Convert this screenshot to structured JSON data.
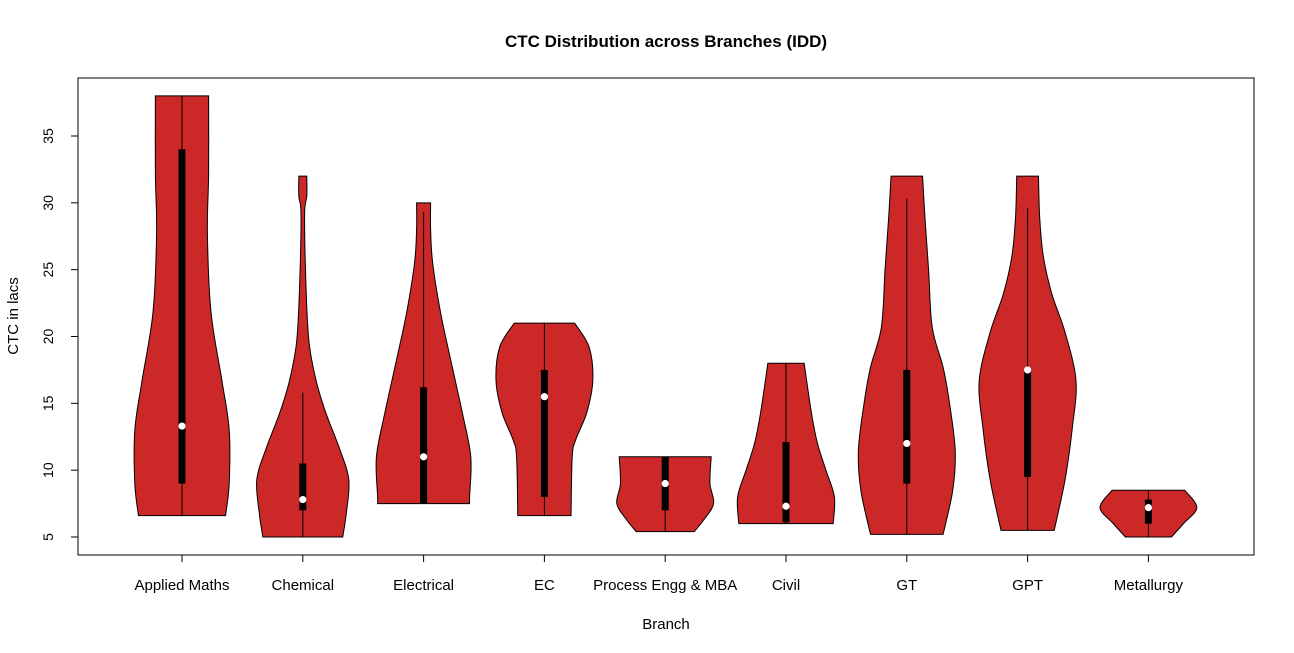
{
  "chart_data": {
    "type": "violin",
    "title": "CTC Distribution across Branches (IDD)",
    "xlabel": "Branch",
    "ylabel": "CTC in lacs",
    "ylim": [
      3.6,
      39.3
    ],
    "yticks": [
      5,
      10,
      15,
      20,
      25,
      30,
      35
    ],
    "fill_color": "#CC2828",
    "grid": false,
    "categories": [
      "Applied Maths",
      "Chemical",
      "Electrical",
      "EC",
      "Process Engg & MBA",
      "Civil",
      "GT",
      "GPT",
      "Metallurgy"
    ],
    "series": [
      {
        "min": 6.6,
        "max": 38,
        "q1": 9,
        "q3": 34,
        "median": 13.3,
        "whisker_low": 6.6,
        "whisker_high": 38,
        "density": [
          [
            6.6,
            0.36
          ],
          [
            9,
            0.39
          ],
          [
            13,
            0.39
          ],
          [
            16.7,
            0.33
          ],
          [
            21.8,
            0.24
          ],
          [
            27.7,
            0.21
          ],
          [
            32.2,
            0.22
          ],
          [
            38,
            0.22
          ]
        ]
      },
      {
        "min": 5,
        "max": 32,
        "q1": 7,
        "q3": 10.5,
        "median": 7.8,
        "whisker_low": 5,
        "whisker_high": 15.8,
        "density": [
          [
            5,
            0.33
          ],
          [
            6.8,
            0.36
          ],
          [
            9.3,
            0.38
          ],
          [
            11.7,
            0.3
          ],
          [
            14.3,
            0.19
          ],
          [
            16.7,
            0.11
          ],
          [
            19.7,
            0.05
          ],
          [
            24.2,
            0.025
          ],
          [
            29.2,
            0.015
          ],
          [
            30.5,
            0.033
          ],
          [
            32,
            0.033
          ]
        ]
      },
      {
        "min": 7.5,
        "max": 30,
        "q1": 7.5,
        "q3": 16.2,
        "median": 11,
        "whisker_low": 7.5,
        "whisker_high": 29.3,
        "density": [
          [
            7.5,
            0.38
          ],
          [
            8,
            0.38
          ],
          [
            11,
            0.39
          ],
          [
            14.3,
            0.32
          ],
          [
            18,
            0.23
          ],
          [
            21.8,
            0.14
          ],
          [
            25.5,
            0.075
          ],
          [
            28,
            0.058
          ],
          [
            30,
            0.058
          ]
        ]
      },
      {
        "min": 6.6,
        "max": 21,
        "q1": 8,
        "q3": 17.5,
        "median": 15.5,
        "whisker_low": 6.6,
        "whisker_high": 21,
        "density": [
          [
            6.6,
            0.22
          ],
          [
            11,
            0.23
          ],
          [
            12.3,
            0.26
          ],
          [
            14.3,
            0.35
          ],
          [
            16.7,
            0.4
          ],
          [
            19.2,
            0.37
          ],
          [
            21,
            0.25
          ]
        ]
      },
      {
        "min": 5.4,
        "max": 11,
        "q1": 7,
        "q3": 11,
        "median": 9,
        "whisker_low": 5.4,
        "whisker_high": 11,
        "density": [
          [
            5.4,
            0.24
          ],
          [
            6.3,
            0.32
          ],
          [
            7.5,
            0.4
          ],
          [
            9,
            0.37
          ],
          [
            11,
            0.38
          ]
        ]
      },
      {
        "min": 6,
        "max": 18,
        "q1": 6.1,
        "q3": 12.1,
        "median": 7.3,
        "whisker_low": 6,
        "whisker_high": 18,
        "density": [
          [
            6,
            0.39
          ],
          [
            8,
            0.4
          ],
          [
            10,
            0.33
          ],
          [
            12,
            0.26
          ],
          [
            14.3,
            0.21
          ],
          [
            18,
            0.15
          ]
        ]
      },
      {
        "min": 5.2,
        "max": 32,
        "q1": 9,
        "q3": 17.5,
        "median": 12,
        "whisker_low": 5.2,
        "whisker_high": 30.3,
        "density": [
          [
            5.2,
            0.3
          ],
          [
            8.5,
            0.38
          ],
          [
            11.5,
            0.4
          ],
          [
            15.2,
            0.35
          ],
          [
            17.7,
            0.3
          ],
          [
            20.7,
            0.21
          ],
          [
            25,
            0.18
          ],
          [
            28.9,
            0.15
          ],
          [
            32,
            0.13
          ]
        ]
      },
      {
        "min": 5.5,
        "max": 32,
        "q1": 9.5,
        "q3": 17.5,
        "median": 17.5,
        "whisker_low": 5.5,
        "whisker_high": 29.6,
        "density": [
          [
            5.5,
            0.22
          ],
          [
            9.3,
            0.31
          ],
          [
            13.2,
            0.37
          ],
          [
            16.7,
            0.4
          ],
          [
            20.3,
            0.31
          ],
          [
            23.2,
            0.2
          ],
          [
            26,
            0.13
          ],
          [
            28.9,
            0.1
          ],
          [
            32,
            0.09
          ]
        ]
      },
      {
        "min": 5,
        "max": 8.5,
        "q1": 6,
        "q3": 7.8,
        "median": 7.2,
        "whisker_low": 5,
        "whisker_high": 8.5,
        "density": [
          [
            5,
            0.19
          ],
          [
            6,
            0.29
          ],
          [
            7.2,
            0.4
          ],
          [
            8.5,
            0.3
          ]
        ]
      }
    ]
  }
}
